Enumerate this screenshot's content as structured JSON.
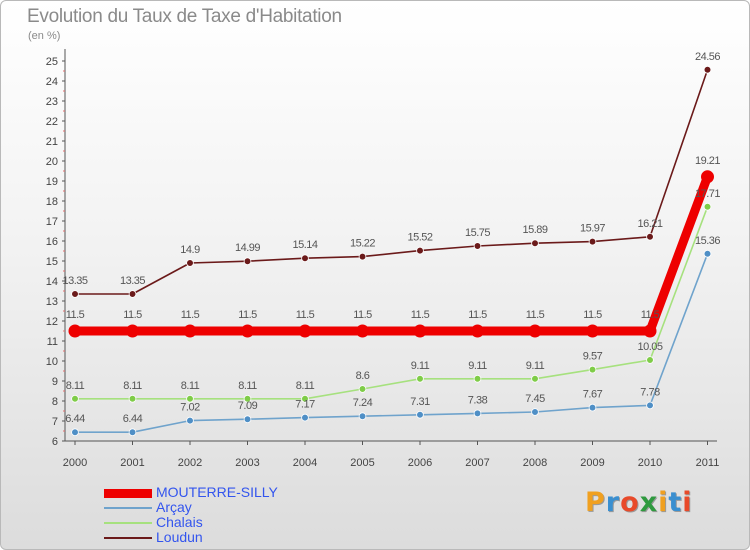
{
  "title": "Evolution du Taux de Taxe d'Habitation",
  "unit": "(en %)",
  "chart_data": {
    "type": "line",
    "x": [
      "2000",
      "2001",
      "2002",
      "2003",
      "2004",
      "2005",
      "2006",
      "2007",
      "2008",
      "2009",
      "2010",
      "2011"
    ],
    "ylim": [
      6,
      25
    ],
    "yticks": [
      6,
      7,
      8,
      9,
      10,
      11,
      12,
      13,
      14,
      15,
      16,
      17,
      18,
      19,
      20,
      21,
      22,
      23,
      24,
      25
    ],
    "grid": false,
    "legend_position": "bottom-left",
    "series": [
      {
        "name": "Loudun",
        "color": "#6b1a1a",
        "values": [
          13.35,
          13.35,
          14.9,
          14.99,
          15.14,
          15.22,
          15.52,
          15.75,
          15.89,
          15.97,
          16.21,
          24.56
        ],
        "labels": [
          "13.35",
          "13.35",
          "14.9",
          "14.99",
          "15.14",
          "15.22",
          "15.52",
          "15.75",
          "15.89",
          "15.97",
          "16.21",
          "24.56"
        ]
      },
      {
        "name": "Chalais",
        "color": "#a6e17e",
        "marker_color": "#7fcc48",
        "values": [
          8.11,
          8.11,
          8.11,
          8.11,
          8.11,
          8.6,
          9.11,
          9.11,
          9.11,
          9.57,
          10.05,
          17.71
        ],
        "labels": [
          "8.11",
          "8.11",
          "8.11",
          "8.11",
          "8.11",
          "8.6",
          "9.11",
          "9.11",
          "9.11",
          "9.57",
          "10.05",
          "17.71"
        ]
      },
      {
        "name": "Arçay",
        "color": "#6fa3cc",
        "marker_color": "#4f8fc6",
        "values": [
          6.44,
          6.44,
          7.02,
          7.09,
          7.17,
          7.24,
          7.31,
          7.38,
          7.45,
          7.67,
          7.78,
          15.36
        ],
        "labels": [
          "6.44",
          "6.44",
          "7.02",
          "7.09",
          "7.17",
          "7.24",
          "7.31",
          "7.38",
          "7.45",
          "7.67",
          "7.78",
          "15.36"
        ]
      },
      {
        "name": "MOUTERRE-SILLY",
        "color": "#ee0000",
        "emphasis": true,
        "values": [
          11.5,
          11.5,
          11.5,
          11.5,
          11.5,
          11.5,
          11.5,
          11.5,
          11.5,
          11.5,
          11.5,
          19.21
        ],
        "labels": [
          "11.5",
          "11.5",
          "11.5",
          "11.5",
          "11.5",
          "11.5",
          "11.5",
          "11.5",
          "11.5",
          "11.5",
          "11.5",
          "19.21"
        ]
      }
    ]
  },
  "legend": [
    {
      "label": "MOUTERRE-SILLY",
      "color": "#ee0000",
      "text_color": "#3355ee"
    },
    {
      "label": "Arçay",
      "color": "#6fa3cc",
      "text_color": "#3355ee"
    },
    {
      "label": "Chalais",
      "color": "#a6e17e",
      "text_color": "#3355ee"
    },
    {
      "label": "Loudun",
      "color": "#6b1a1a",
      "text_color": "#3355ee"
    }
  ],
  "logo": {
    "letters": [
      "P",
      "r",
      "o",
      "x",
      "i",
      "t",
      "i"
    ],
    "colors": [
      "#f0a020",
      "#3a8fd0",
      "#e84a2a",
      "#2f9a3f",
      "#f0a020",
      "#3a8fd0",
      "#e84a2a"
    ]
  }
}
